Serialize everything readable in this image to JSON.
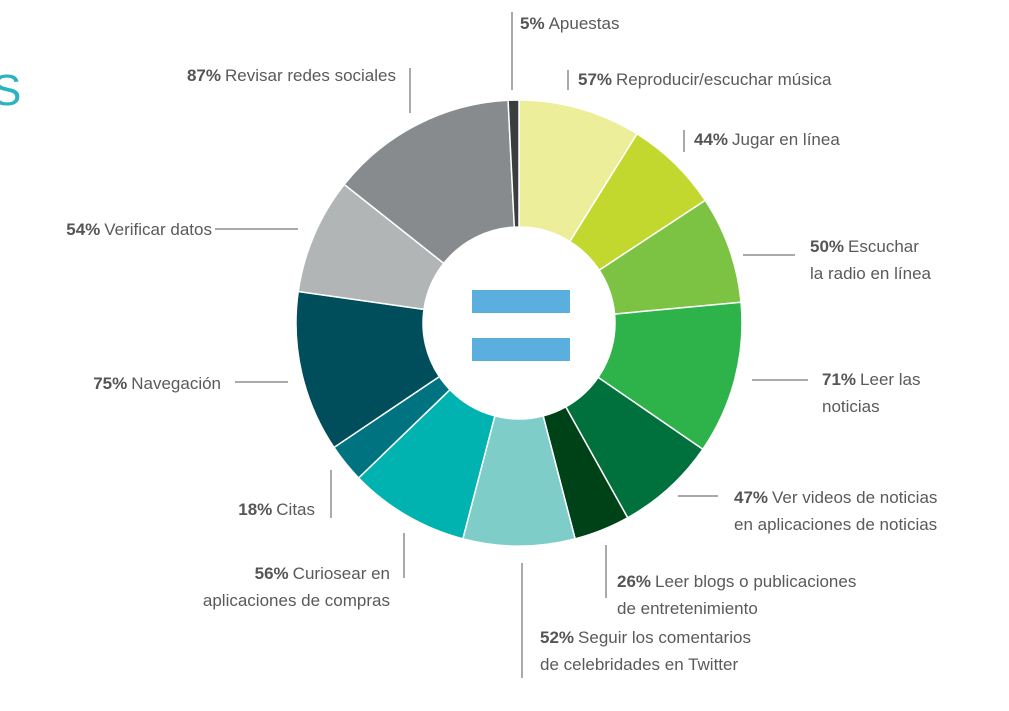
{
  "header": {
    "text": "S"
  },
  "chart_data": {
    "type": "donut",
    "categories": [
      "Reproducir/escuchar música",
      "Jugar en línea",
      "Escuchar\nla radio en línea",
      "Leer las\nnoticias",
      "Ver videos de noticias\nen aplicaciones de noticias",
      "Leer blogs o publicaciones\nde entretenimiento",
      "Seguir los comentarios\nde celebridades en Twitter",
      "Curiosear en\naplicaciones de compras",
      "Citas",
      "Navegación",
      "Verificar datos",
      "Revisar redes sociales",
      "Apuestas"
    ],
    "values": [
      57,
      44,
      50,
      71,
      47,
      26,
      52,
      56,
      18,
      75,
      54,
      87,
      5
    ],
    "value_labels": [
      "57%",
      "44%",
      "50%",
      "71%",
      "47%",
      "26%",
      "52%",
      "56%",
      "18%",
      "75%",
      "54%",
      "87%",
      "5%"
    ],
    "colors": [
      "#ecee9a",
      "#c3d82e",
      "#7cc243",
      "#2db34a",
      "#00703c",
      "#004218",
      "#7ecdc8",
      "#00b2b0",
      "#007380",
      "#004d5c",
      "#b1b5b6",
      "#878b8e",
      "#3c3d3f"
    ]
  }
}
